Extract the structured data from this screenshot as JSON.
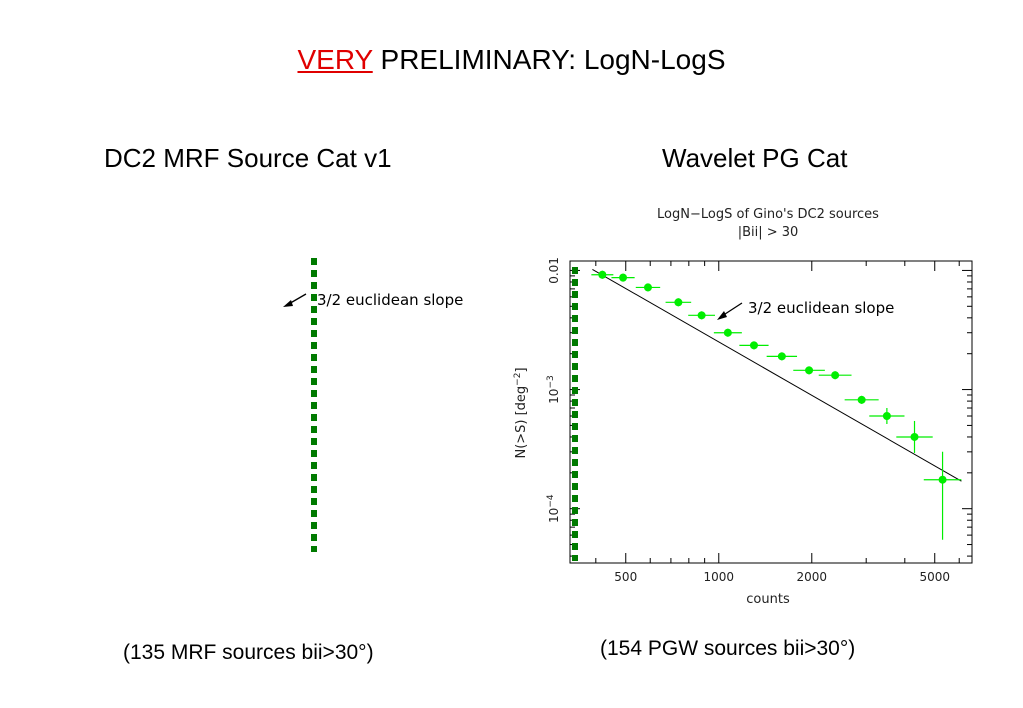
{
  "slide": {
    "title_very": "VERY",
    "title_rest": " PRELIMINARY: LogN-LogS",
    "left_heading": "DC2 MRF Source Cat v1",
    "right_heading": "Wavelet PG Cat",
    "left_annotation": "3/2 euclidean slope",
    "right_annotation": "3/2 euclidean slope",
    "left_footnote": "(135 MRF sources bii>30°)",
    "right_footnote": "(154 PGW sources bii>30°)",
    "colors": {
      "very": "#e00000",
      "points": "#00ee00",
      "threshold_line": "#007a00",
      "fit_line": "#000000"
    }
  },
  "chart_data": [
    {
      "type": "line",
      "title": "",
      "series": [],
      "annotations": [
        "3/2 euclidean slope"
      ],
      "threshold_line": "green dashed vertical"
    },
    {
      "type": "scatter",
      "title": "LogN−LogS of Gino's DC2 sources",
      "subtitle": "|Bii| > 30",
      "xlabel": "counts",
      "ylabel_text": "N(>S) [deg",
      "ylabel_sup": "−2",
      "ylabel_close": "]",
      "xscale": "log",
      "yscale": "log",
      "xlim": [
        330,
        6600
      ],
      "ylim": [
        3.5e-05,
        0.012
      ],
      "xticks": [
        500,
        1000,
        2000,
        5000
      ],
      "xtick_labels": [
        "500",
        "1000",
        "2000",
        "5000"
      ],
      "yticks": [
        0.0001,
        0.001,
        0.01
      ],
      "ytick_labels": [
        {
          "base": "10",
          "exp": "−4"
        },
        {
          "base": "10",
          "exp": "−3"
        },
        {
          "base": "0.01",
          "exp": ""
        }
      ],
      "series": [
        {
          "points": [
            {
              "x": 420,
              "y": 0.0092
            },
            {
              "x": 490,
              "y": 0.0087
            },
            {
              "x": 590,
              "y": 0.0072
            },
            {
              "x": 740,
              "y": 0.0054
            },
            {
              "x": 880,
              "y": 0.0042
            },
            {
              "x": 1070,
              "y": 0.003
            },
            {
              "x": 1300,
              "y": 0.00235
            },
            {
              "x": 1600,
              "y": 0.0019
            },
            {
              "x": 1960,
              "y": 0.00145
            },
            {
              "x": 2380,
              "y": 0.00132
            },
            {
              "x": 2900,
              "y": 0.00082
            },
            {
              "x": 3500,
              "y": 0.0006
            },
            {
              "x": 4300,
              "y": 0.0004
            },
            {
              "x": 5300,
              "y": 0.000175
            }
          ]
        }
      ],
      "fit_line": {
        "x": [
          390,
          6100
        ],
        "y": [
          0.0102,
          0.00017
        ]
      },
      "annotations": [
        "3/2 euclidean slope"
      ],
      "threshold_line": "green dashed vertical"
    }
  ]
}
